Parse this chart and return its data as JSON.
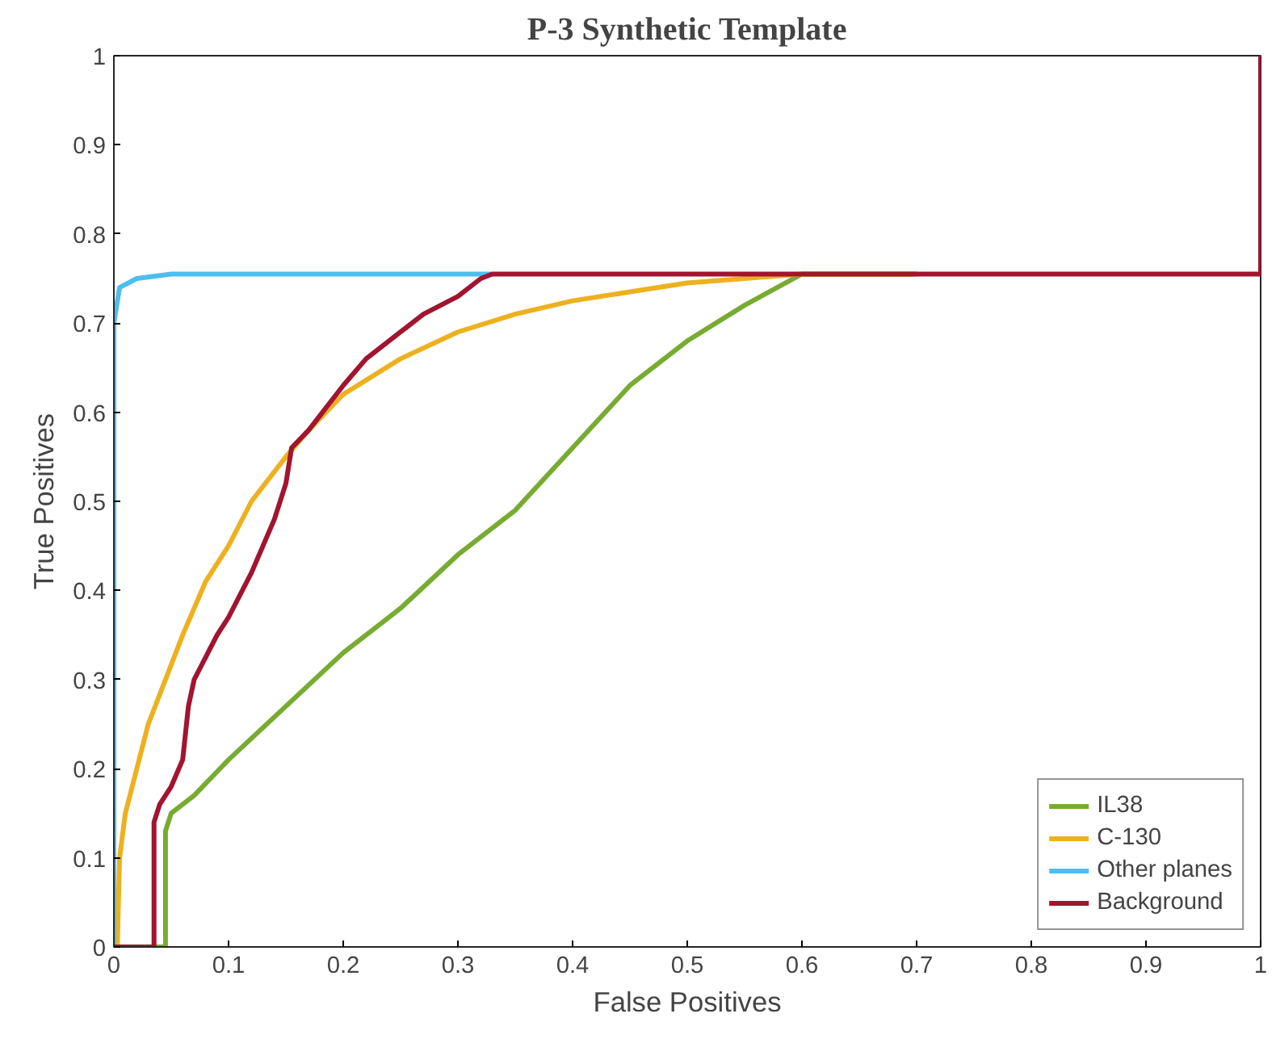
{
  "chart_data": {
    "type": "line",
    "title": "P-3 Synthetic Template",
    "xlabel": "False Positives",
    "ylabel": "True Positives",
    "xlim": [
      0,
      1
    ],
    "ylim": [
      0,
      1
    ],
    "xticks": [
      0,
      0.1,
      0.2,
      0.3,
      0.4,
      0.5,
      0.6,
      0.7,
      0.8,
      0.9,
      1
    ],
    "yticks": [
      0,
      0.1,
      0.2,
      0.3,
      0.4,
      0.5,
      0.6,
      0.7,
      0.8,
      0.9,
      1
    ],
    "grid": false,
    "legend": "bottom right",
    "line_style": "solid",
    "marker": "none",
    "series": [
      {
        "name": "IL38",
        "color": "#77ac30",
        "x": [
          0,
          0.045,
          0.045,
          0.05,
          0.07,
          0.1,
          0.15,
          0.2,
          0.25,
          0.3,
          0.35,
          0.4,
          0.45,
          0.5,
          0.55,
          0.6,
          0.7
        ],
        "values": [
          0,
          0,
          0.13,
          0.15,
          0.17,
          0.21,
          0.27,
          0.33,
          0.38,
          0.44,
          0.49,
          0.56,
          0.63,
          0.68,
          0.72,
          0.755,
          0.755
        ]
      },
      {
        "name": "C-130",
        "color": "#edb120",
        "x": [
          0,
          0.003,
          0.005,
          0.01,
          0.02,
          0.03,
          0.045,
          0.06,
          0.08,
          0.1,
          0.12,
          0.15,
          0.17,
          0.2,
          0.25,
          0.3,
          0.35,
          0.4,
          0.45,
          0.5,
          0.55,
          0.6,
          0.7
        ],
        "values": [
          0,
          0,
          0.1,
          0.15,
          0.2,
          0.25,
          0.3,
          0.35,
          0.41,
          0.45,
          0.5,
          0.55,
          0.58,
          0.62,
          0.66,
          0.69,
          0.71,
          0.725,
          0.735,
          0.745,
          0.75,
          0.755,
          0.755
        ]
      },
      {
        "name": "Other planes",
        "color": "#4dbeee",
        "x": [
          0,
          0,
          0.005,
          0.02,
          0.05,
          0.33
        ],
        "values": [
          0,
          0.7,
          0.74,
          0.75,
          0.755,
          0.755
        ]
      },
      {
        "name": "Background",
        "color": "#a2142f",
        "x": [
          0,
          0.035,
          0.035,
          0.04,
          0.05,
          0.06,
          0.065,
          0.07,
          0.09,
          0.1,
          0.12,
          0.14,
          0.15,
          0.155,
          0.17,
          0.2,
          0.22,
          0.25,
          0.27,
          0.3,
          0.32,
          0.33,
          1,
          1
        ],
        "values": [
          0,
          0,
          0.14,
          0.16,
          0.18,
          0.21,
          0.27,
          0.3,
          0.35,
          0.37,
          0.42,
          0.48,
          0.52,
          0.56,
          0.58,
          0.63,
          0.66,
          0.69,
          0.71,
          0.73,
          0.75,
          0.755,
          0.755,
          1
        ]
      }
    ]
  }
}
